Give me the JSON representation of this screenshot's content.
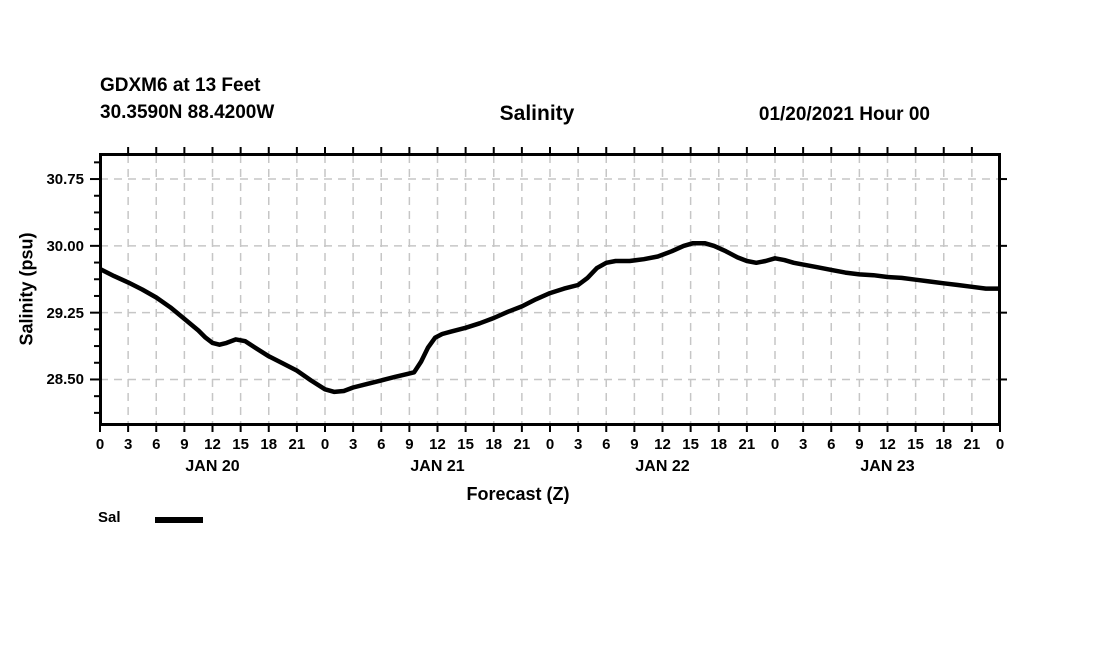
{
  "header": {
    "station": "GDXM6 at 13 Feet",
    "coordinates": "30.3590N 88.4200W",
    "title": "Salinity",
    "datetime": "01/20/2021 Hour 00"
  },
  "legend": {
    "sal_label": "Sal"
  },
  "colors": {
    "line": "#000000",
    "grid": "#c6c6c6",
    "frame": "#000000",
    "background": "#ffffff"
  },
  "chart_data": {
    "type": "line",
    "title": "Salinity",
    "xlabel": "Forecast (Z)",
    "ylabel": "Salinity (psu)",
    "xlim_hours": [
      0,
      96
    ],
    "ylim": [
      28.0,
      31.02
    ],
    "ytick_values": [
      28.5,
      29.25,
      30.0,
      30.75
    ],
    "ytick_labels": [
      "28.50",
      "29.25",
      "30.00",
      "30.75"
    ],
    "y_minor_step": 0.1875,
    "xtick_step_hours": 3,
    "hour_label_modulo": 24,
    "day_labels": [
      "JAN 20",
      "JAN 21",
      "JAN 22",
      "JAN 23"
    ],
    "day_label_center_hours": [
      12,
      36,
      60,
      84
    ],
    "grid": "dashed",
    "legend_position": "bottom-left",
    "series": [
      {
        "name": "Sal",
        "points": [
          [
            0,
            29.74
          ],
          [
            1.5,
            29.66
          ],
          [
            3,
            29.59
          ],
          [
            4.5,
            29.51
          ],
          [
            6,
            29.42
          ],
          [
            7.5,
            29.31
          ],
          [
            9,
            29.18
          ],
          [
            10.5,
            29.05
          ],
          [
            11.25,
            28.97
          ],
          [
            12,
            28.91
          ],
          [
            12.75,
            28.89
          ],
          [
            13.5,
            28.91
          ],
          [
            14.5,
            28.95
          ],
          [
            15.5,
            28.93
          ],
          [
            16.5,
            28.86
          ],
          [
            18,
            28.76
          ],
          [
            19.5,
            28.68
          ],
          [
            21,
            28.6
          ],
          [
            22.5,
            28.49
          ],
          [
            24,
            28.39
          ],
          [
            25,
            28.36
          ],
          [
            26,
            28.37
          ],
          [
            27,
            28.41
          ],
          [
            28.5,
            28.45
          ],
          [
            30,
            28.49
          ],
          [
            31.5,
            28.53
          ],
          [
            32.75,
            28.56
          ],
          [
            33.5,
            28.58
          ],
          [
            34.25,
            28.7
          ],
          [
            35,
            28.86
          ],
          [
            35.75,
            28.97
          ],
          [
            36.5,
            29.01
          ],
          [
            37.5,
            29.04
          ],
          [
            39,
            29.08
          ],
          [
            40.5,
            29.13
          ],
          [
            42,
            29.19
          ],
          [
            43.5,
            29.26
          ],
          [
            45,
            29.32
          ],
          [
            46.5,
            29.4
          ],
          [
            48,
            29.47
          ],
          [
            49.5,
            29.52
          ],
          [
            51,
            29.56
          ],
          [
            52,
            29.64
          ],
          [
            53,
            29.75
          ],
          [
            54,
            29.81
          ],
          [
            55,
            29.83
          ],
          [
            56.5,
            29.83
          ],
          [
            58,
            29.85
          ],
          [
            59.5,
            29.88
          ],
          [
            61,
            29.94
          ],
          [
            62.25,
            30.0
          ],
          [
            63.25,
            30.03
          ],
          [
            64.5,
            30.03
          ],
          [
            65.5,
            30.0
          ],
          [
            66.75,
            29.94
          ],
          [
            68,
            29.87
          ],
          [
            69,
            29.83
          ],
          [
            70,
            29.81
          ],
          [
            71,
            29.83
          ],
          [
            72,
            29.86
          ],
          [
            73,
            29.84
          ],
          [
            74,
            29.81
          ],
          [
            75,
            29.79
          ],
          [
            76.5,
            29.76
          ],
          [
            78,
            29.73
          ],
          [
            79.5,
            29.7
          ],
          [
            81,
            29.68
          ],
          [
            82.5,
            29.67
          ],
          [
            84,
            29.65
          ],
          [
            85.5,
            29.64
          ],
          [
            87,
            29.62
          ],
          [
            88.5,
            29.6
          ],
          [
            90,
            29.58
          ],
          [
            91.5,
            29.56
          ],
          [
            93,
            29.54
          ],
          [
            94.5,
            29.52
          ],
          [
            96,
            29.52
          ]
        ]
      }
    ]
  }
}
